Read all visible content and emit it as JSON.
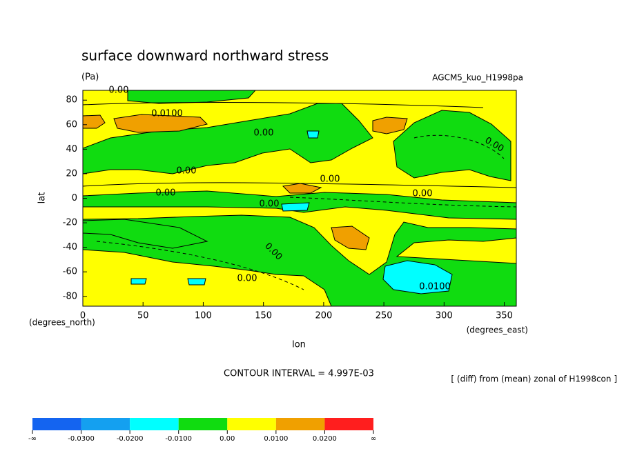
{
  "chart_data": {
    "type": "contour",
    "title": "surface downward northward stress",
    "units": "(Pa)",
    "dataset": "AGCM5_kuo_H1998pa",
    "xlabel": "lon",
    "ylabel": "lat",
    "x_unit": "(degrees_east)",
    "y_unit": "(degrees_north)",
    "xlim": [
      0,
      360
    ],
    "ylim": [
      -88,
      88
    ],
    "xticks": [
      0,
      50,
      100,
      150,
      200,
      250,
      300,
      350
    ],
    "yticks": [
      -80,
      -60,
      -40,
      -20,
      0,
      20,
      40,
      60,
      80
    ],
    "contour_labels": [
      "0.00",
      "0.0100",
      "0.00",
      "0.00",
      "0.00",
      "0.00",
      "0.00",
      "0.00",
      "0.00",
      "0.00",
      "0.00",
      "0.0100"
    ],
    "contour_interval": "CONTOUR INTERVAL = 4.997E-03",
    "footnote": "[ (diff) from (mean) zonal of H1998con ]",
    "colorbar": {
      "colors": [
        "#1464f0",
        "#14a0f0",
        "#00ffff",
        "#10dc10",
        "#ffff00",
        "#f0a000",
        "#ff1e1e"
      ],
      "labels": [
        "-∞",
        "-0.0300",
        "-0.0200",
        "-0.0100",
        "0.00",
        "0.0100",
        "0.0200",
        "∞"
      ]
    }
  }
}
